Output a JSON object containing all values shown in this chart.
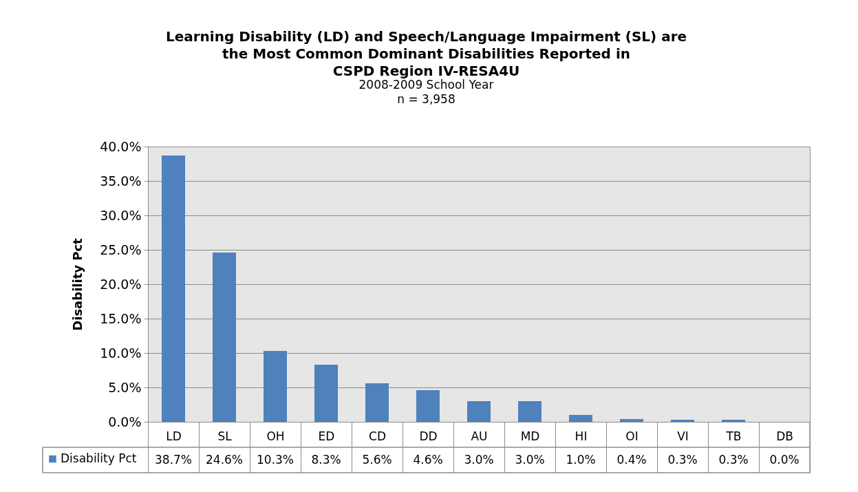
{
  "chart_data": {
    "type": "bar",
    "title": "Learning Disability (LD) and Speech/Language Impairment (SL) are\nthe Most Common Dominant Disabilities Reported in\nCSPD Region IV-RESA4U",
    "subtitle": "2008-2009 School Year\nn = 3,958",
    "ylabel": "Disability Pct",
    "categories": [
      "LD",
      "SL",
      "OH",
      "ED",
      "CD",
      "DD",
      "AU",
      "MD",
      "HI",
      "OI",
      "VI",
      "TB",
      "DB"
    ],
    "series": [
      {
        "name": "Disability Pct",
        "color": "#4f81bd",
        "values": [
          38.7,
          24.6,
          10.3,
          8.3,
          5.6,
          4.6,
          3.0,
          3.0,
          1.0,
          0.4,
          0.3,
          0.3,
          0.0
        ],
        "value_labels": [
          "38.7%",
          "24.6%",
          "10.3%",
          "8.3%",
          "5.6%",
          "4.6%",
          "3.0%",
          "3.0%",
          "1.0%",
          "0.4%",
          "0.3%",
          "0.3%",
          "0.0%"
        ]
      }
    ],
    "ylim": [
      0,
      40
    ],
    "yticks": [
      {
        "value": 0,
        "label": "0.0%"
      },
      {
        "value": 5,
        "label": "5.0%"
      },
      {
        "value": 10,
        "label": "10.0%"
      },
      {
        "value": 15,
        "label": "15.0%"
      },
      {
        "value": 20,
        "label": "20.0%"
      },
      {
        "value": 25,
        "label": "25.0%"
      },
      {
        "value": 30,
        "label": "30.0%"
      },
      {
        "value": 35,
        "label": "35.0%"
      },
      {
        "value": 40,
        "label": "40.0%"
      }
    ],
    "grid": "y",
    "legend": "bottom left"
  }
}
